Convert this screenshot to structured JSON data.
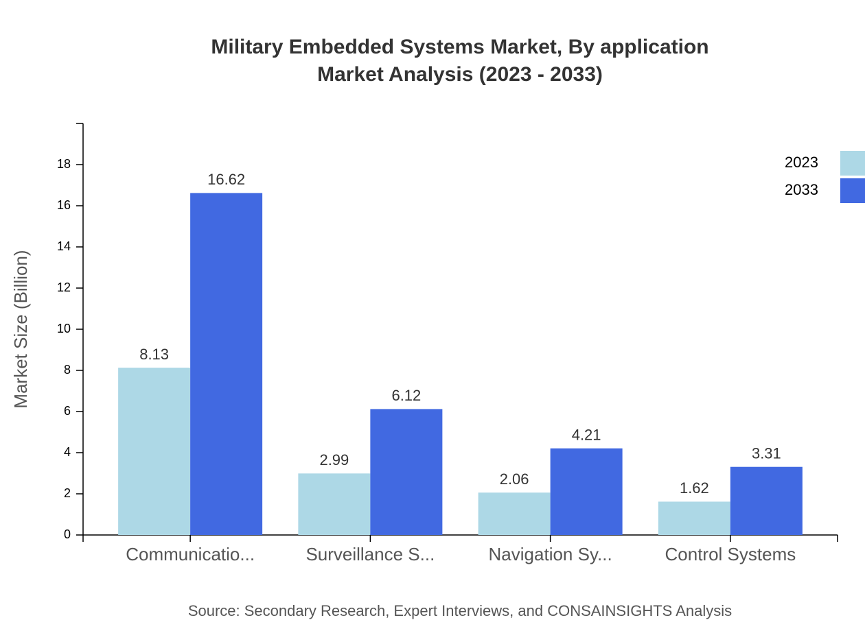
{
  "chart_data": {
    "type": "bar",
    "title": "Military Embedded Systems Market, By application",
    "subtitle": "Market Analysis (2023 - 2033)",
    "y_label": "Market Size (Billion)",
    "source": "Source: Secondary Research, Expert Interviews, and CONSAINSIGHTS Analysis",
    "categories": [
      "Communicatio...",
      "Surveillance S...",
      "Navigation Sy...",
      "Control Systems"
    ],
    "series": [
      {
        "name": "2023",
        "color": "#add8e6",
        "values": [
          8.13,
          2.99,
          2.06,
          1.62
        ]
      },
      {
        "name": "2033",
        "color": "#4169e1",
        "values": [
          16.62,
          6.12,
          4.21,
          3.31
        ]
      }
    ],
    "ylim": [
      0,
      20
    ],
    "yticks": [
      0,
      2,
      4,
      6,
      8,
      10,
      12,
      14,
      16,
      18
    ],
    "legend": "top-right"
  }
}
